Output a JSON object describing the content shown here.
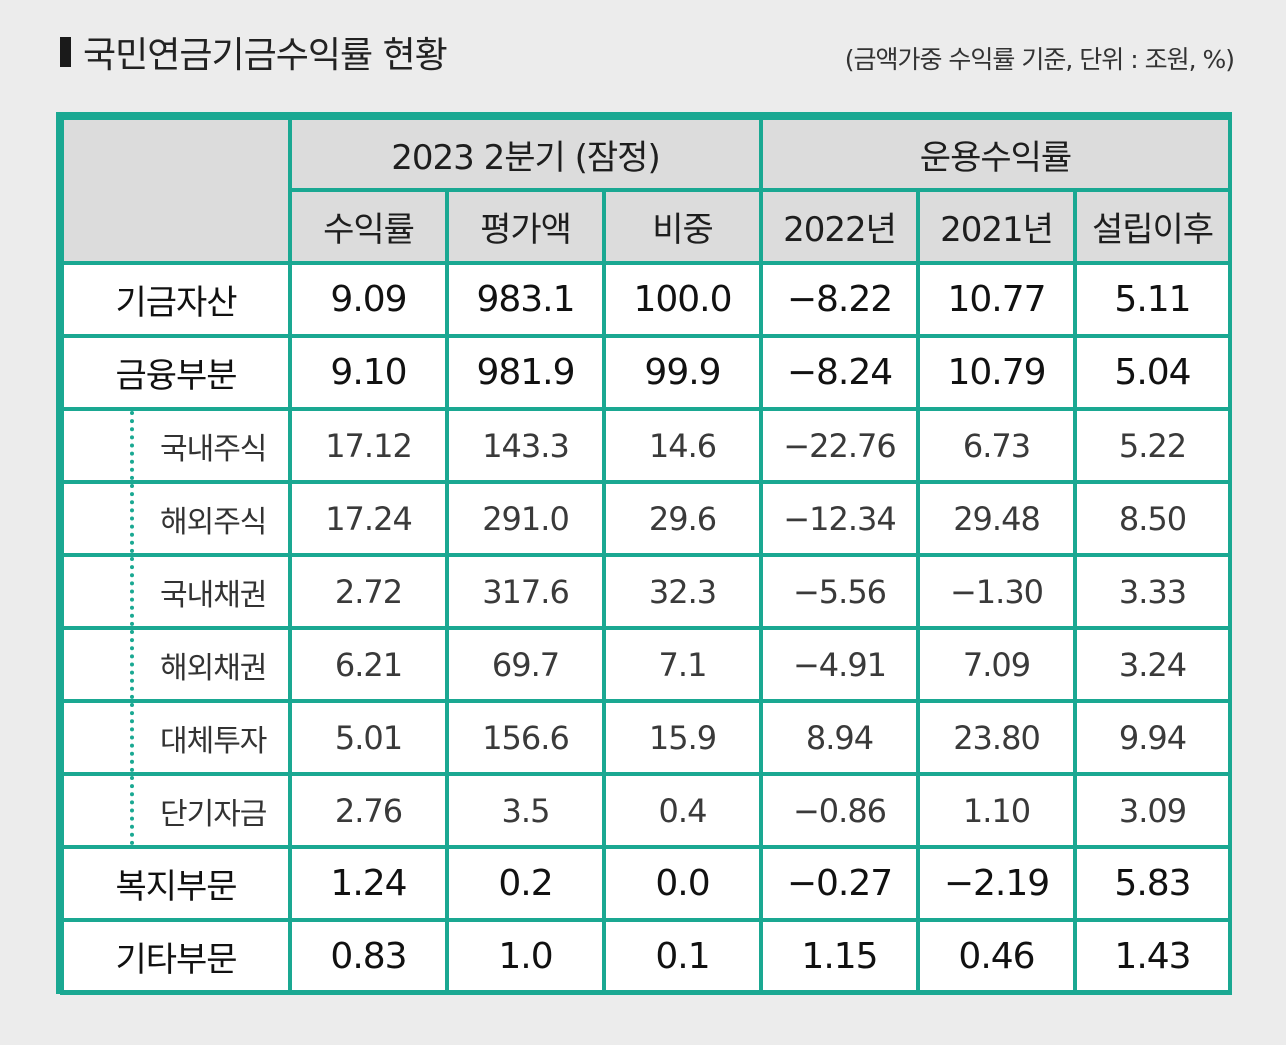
{
  "title": "국민연금기금수익률 현황",
  "unit_note": "(금액가중 수익률 기준, 단위 : 조원, %)",
  "header": {
    "group1": "2023  2분기 (잠정)",
    "group2": "운용수익률",
    "columns": [
      "수익률",
      "평가액",
      "비중",
      "2022년",
      "2021년",
      "설립이후"
    ]
  },
  "rows": [
    {
      "label": "기금자산",
      "values": [
        "9.09",
        "983.1",
        "100.0",
        "−8.22",
        "10.77",
        "5.11"
      ]
    },
    {
      "label": "금융부분",
      "values": [
        "9.10",
        "981.9",
        "99.9",
        "−8.24",
        "10.79",
        "5.04"
      ]
    },
    {
      "label": "국내주식",
      "values": [
        "17.12",
        "143.3",
        "14.6",
        "−22.76",
        "6.73",
        "5.22"
      ]
    },
    {
      "label": "해외주식",
      "values": [
        "17.24",
        "291.0",
        "29.6",
        "−12.34",
        "29.48",
        "8.50"
      ]
    },
    {
      "label": "국내채권",
      "values": [
        "2.72",
        "317.6",
        "32.3",
        "−5.56",
        "−1.30",
        "3.33"
      ]
    },
    {
      "label": "해외채권",
      "values": [
        "6.21",
        "69.7",
        "7.1",
        "−4.91",
        "7.09",
        "3.24"
      ]
    },
    {
      "label": "대체투자",
      "values": [
        "5.01",
        "156.6",
        "15.9",
        "8.94",
        "23.80",
        "9.94"
      ]
    },
    {
      "label": "단기자금",
      "values": [
        "2.76",
        "3.5",
        "0.4",
        "−0.86",
        "1.10",
        "3.09"
      ]
    },
    {
      "label": "복지부문",
      "values": [
        "1.24",
        "0.2",
        "0.0",
        "−0.27",
        "−2.19",
        "5.83"
      ]
    },
    {
      "label": "기타부문",
      "values": [
        "0.83",
        "1.0",
        "0.1",
        "1.15",
        "0.46",
        "1.43"
      ]
    }
  ],
  "colors": {
    "accent": "#1aa892",
    "header_bg": "#dcdcdc",
    "page_bg": "#ececec"
  }
}
